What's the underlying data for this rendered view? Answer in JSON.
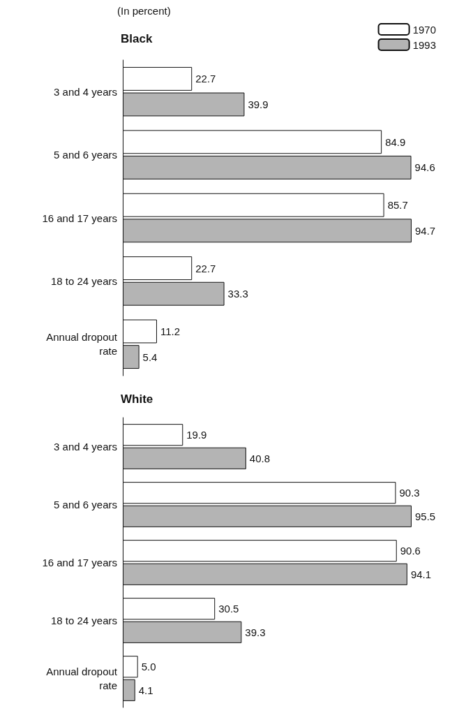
{
  "chart_data": [
    {
      "type": "bar",
      "orientation": "horizontal",
      "title": "Black",
      "annotations": [
        "(In percent)"
      ],
      "categories": [
        "3 and 4 years",
        "5 and 6 years",
        "16 and 17 years",
        "18 to 24 years",
        "Annual dropout\nrate"
      ],
      "series": [
        {
          "name": "1970",
          "color": "#ffffff",
          "values": [
            22.7,
            84.9,
            85.7,
            22.7,
            11.2
          ],
          "value_labels": [
            "22.7",
            "84.9",
            "85.7",
            "22.7",
            "11.2"
          ]
        },
        {
          "name": "1993",
          "color": "#b4b4b4",
          "values": [
            39.9,
            94.6,
            94.7,
            33.3,
            5.4
          ],
          "value_labels": [
            "39.9",
            "94.6",
            "94.7",
            "33.3",
            "5.4"
          ]
        }
      ],
      "legend": "top right"
    },
    {
      "type": "bar",
      "orientation": "horizontal",
      "title": "White",
      "categories": [
        "3 and 4 years",
        "5 and 6 years",
        "16 and 17 years",
        "18 to 24 years",
        "Annual dropout\nrate"
      ],
      "series": [
        {
          "name": "1970",
          "color": "#ffffff",
          "values": [
            19.9,
            90.3,
            90.6,
            30.5,
            5.0
          ],
          "value_labels": [
            "19.9",
            "90.3",
            "90.6",
            "30.5",
            "5.0"
          ]
        },
        {
          "name": "1993",
          "color": "#b4b4b4",
          "values": [
            40.8,
            95.5,
            94.1,
            39.3,
            4.1
          ],
          "value_labels": [
            "40.8",
            "95.5",
            "94.1",
            "39.3",
            "4.1"
          ]
        }
      ],
      "legend": false
    }
  ]
}
